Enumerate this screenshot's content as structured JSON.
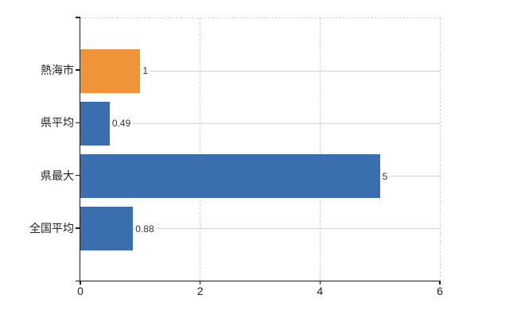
{
  "chart_data": {
    "type": "bar",
    "orientation": "horizontal",
    "title": "",
    "categories": [
      "熱海市",
      "県平均",
      "県最大",
      "全国平均"
    ],
    "values": [
      1,
      0.49,
      5,
      0.88
    ],
    "value_labels": [
      "1",
      "0.49",
      "5",
      "0.88"
    ],
    "bar_colors": [
      "#ef9438",
      "#3b6eae",
      "#3b6eae",
      "#3b6eae"
    ],
    "highlight_color": "#ef9438",
    "base_color": "#3b6eae",
    "xlim": [
      0,
      6
    ],
    "x_ticks": [
      "0",
      "2",
      "4",
      "6"
    ],
    "grid": true,
    "legend": false,
    "gridline_h_color": "#cdd7cd",
    "gridline_v_color": "#cdd4cd",
    "axis_color": "#1a1a1a"
  }
}
